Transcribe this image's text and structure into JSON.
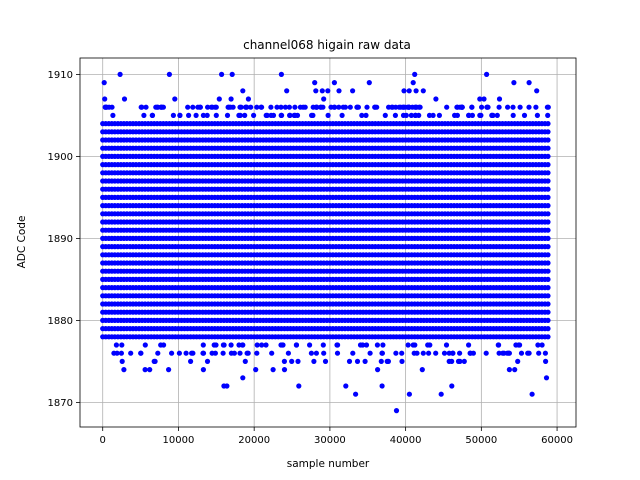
{
  "chart_data": {
    "type": "scatter",
    "title": "channel068 higain raw data",
    "xlabel": "sample number",
    "ylabel": "ADC Code",
    "xlim": [
      -3000,
      62500
    ],
    "ylim": [
      1867,
      1912
    ],
    "xticks": [
      0,
      10000,
      20000,
      30000,
      40000,
      50000,
      60000
    ],
    "xtick_labels": [
      "0",
      "10000",
      "20000",
      "30000",
      "40000",
      "50000",
      "60000"
    ],
    "yticks": [
      1870,
      1880,
      1890,
      1900,
      1910
    ],
    "ytick_labels": [
      "1870",
      "1880",
      "1890",
      "1900",
      "1910"
    ],
    "grid": true,
    "marker_color": "#0000ff",
    "x_range": [
      0,
      59000
    ],
    "dense_band": {
      "y_min": 1876,
      "y_max": 1904
    },
    "series": [
      {
        "name": "",
        "core_levels": [
          1878,
          1879,
          1880,
          1881,
          1882,
          1883,
          1884,
          1885,
          1886,
          1887,
          1888,
          1889,
          1890,
          1891,
          1892,
          1893,
          1894,
          1895,
          1896,
          1897,
          1898,
          1899,
          1900,
          1901,
          1902,
          1903,
          1904
        ],
        "outliers": [
          {
            "x": 200,
            "y": 1909
          },
          {
            "x": 2300,
            "y": 1910
          },
          {
            "x": 8800,
            "y": 1910
          },
          {
            "x": 15700,
            "y": 1910
          },
          {
            "x": 17100,
            "y": 1910
          },
          {
            "x": 23600,
            "y": 1910
          },
          {
            "x": 41200,
            "y": 1910
          },
          {
            "x": 41000,
            "y": 1909
          },
          {
            "x": 50700,
            "y": 1910
          },
          {
            "x": 28000,
            "y": 1909
          },
          {
            "x": 30600,
            "y": 1909
          },
          {
            "x": 35200,
            "y": 1909
          },
          {
            "x": 54300,
            "y": 1909
          },
          {
            "x": 56300,
            "y": 1909
          },
          {
            "x": 18500,
            "y": 1908
          },
          {
            "x": 24300,
            "y": 1908
          },
          {
            "x": 29000,
            "y": 1908
          },
          {
            "x": 33000,
            "y": 1908
          },
          {
            "x": 49800,
            "y": 1907
          },
          {
            "x": 52400,
            "y": 1907
          },
          {
            "x": 44000,
            "y": 1907
          },
          {
            "x": 2800,
            "y": 1874
          },
          {
            "x": 5600,
            "y": 1874
          },
          {
            "x": 6200,
            "y": 1874
          },
          {
            "x": 8700,
            "y": 1874
          },
          {
            "x": 13300,
            "y": 1874
          },
          {
            "x": 20200,
            "y": 1874
          },
          {
            "x": 22500,
            "y": 1874
          },
          {
            "x": 24000,
            "y": 1874
          },
          {
            "x": 36300,
            "y": 1874
          },
          {
            "x": 42200,
            "y": 1874
          },
          {
            "x": 53700,
            "y": 1874
          },
          {
            "x": 54400,
            "y": 1874
          },
          {
            "x": 16400,
            "y": 1872
          },
          {
            "x": 16000,
            "y": 1872
          },
          {
            "x": 25900,
            "y": 1872
          },
          {
            "x": 32100,
            "y": 1872
          },
          {
            "x": 36900,
            "y": 1872
          },
          {
            "x": 46100,
            "y": 1872
          },
          {
            "x": 18500,
            "y": 1873
          },
          {
            "x": 58600,
            "y": 1873
          },
          {
            "x": 33400,
            "y": 1871
          },
          {
            "x": 40500,
            "y": 1871
          },
          {
            "x": 44700,
            "y": 1871
          },
          {
            "x": 56700,
            "y": 1871
          },
          {
            "x": 38800,
            "y": 1869
          }
        ]
      }
    ]
  }
}
